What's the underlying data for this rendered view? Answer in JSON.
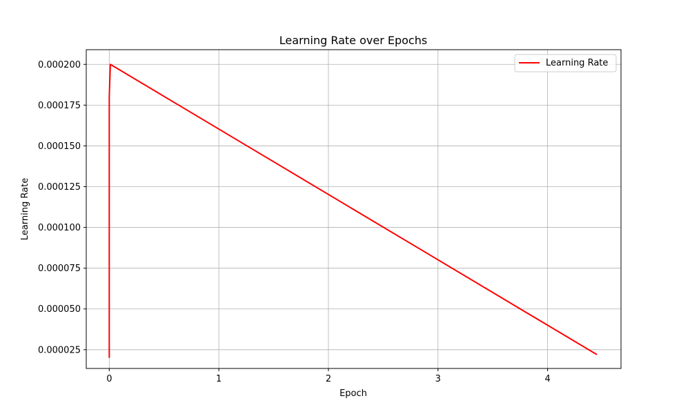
{
  "chart_data": {
    "type": "line",
    "title": "Learning Rate over Epochs",
    "xlabel": "Epoch",
    "ylabel": "Learning Rate",
    "xlim": [
      -0.21,
      4.67
    ],
    "ylim": [
      1.35e-05,
      0.000209
    ],
    "xticks": [
      0,
      1,
      2,
      3,
      4
    ],
    "xtick_labels": [
      "0",
      "1",
      "2",
      "3",
      "4"
    ],
    "yticks": [
      2.5e-05,
      5e-05,
      7.5e-05,
      0.0001,
      0.000125,
      0.00015,
      0.000175,
      0.0002
    ],
    "ytick_labels": [
      "0.000025",
      "0.000050",
      "0.000075",
      "0.000100",
      "0.000125",
      "0.000150",
      "0.000175",
      "0.000200"
    ],
    "grid": true,
    "legend_position": "top-right",
    "series": [
      {
        "name": "Learning Rate",
        "color": "#ff0000",
        "x": [
          0.0,
          0.0,
          0.0,
          0.0,
          0.01,
          4.45
        ],
        "y": [
          2e-05,
          8e-05,
          0.00014,
          0.00018,
          0.0002,
          2.2e-05
        ]
      }
    ]
  }
}
